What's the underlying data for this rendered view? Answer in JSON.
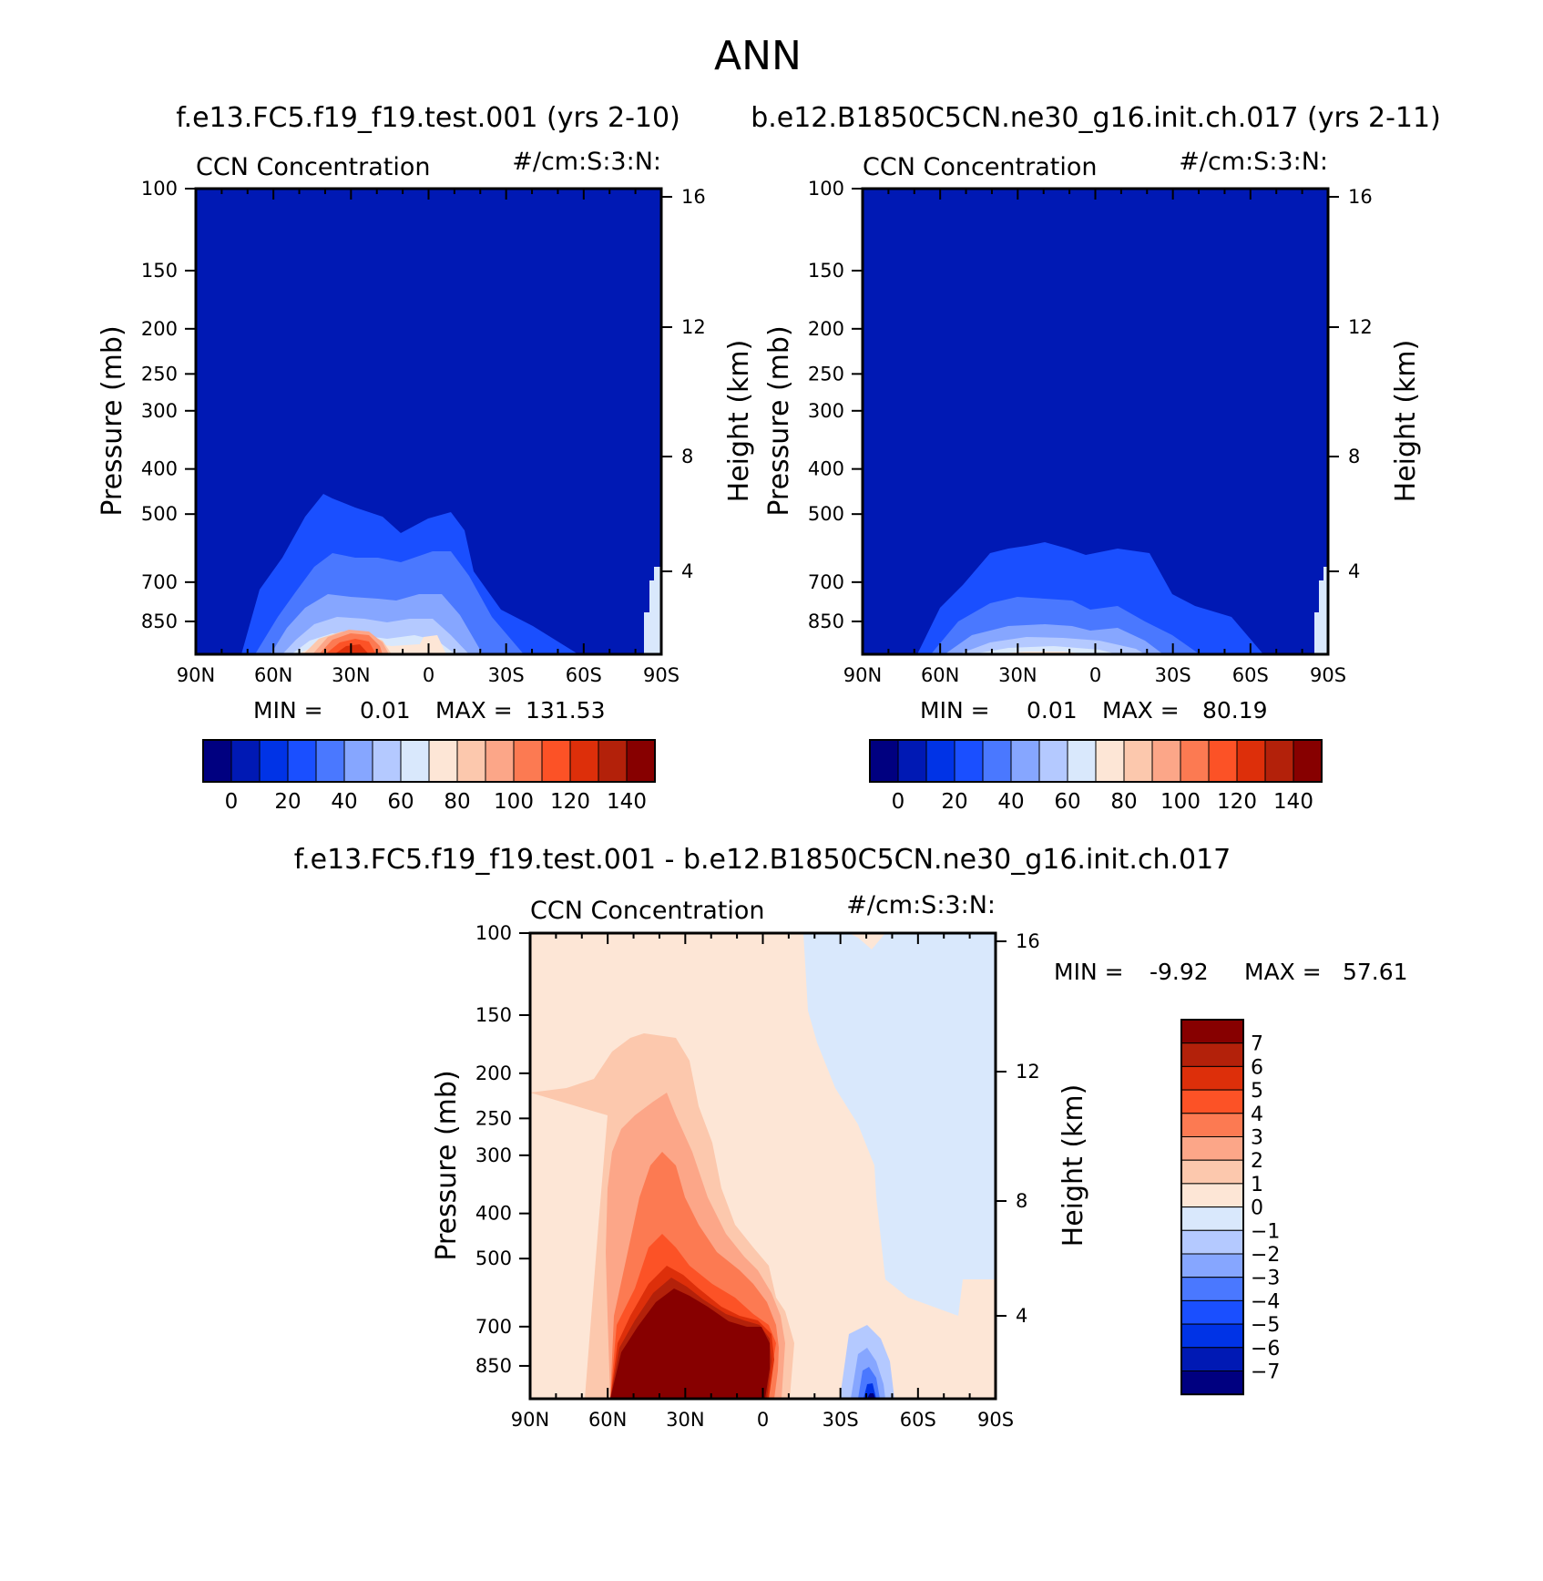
{
  "figure": {
    "title": "ANN"
  },
  "chart_data": [
    {
      "type": "heatmap",
      "title": "f.e13.FC5.f19_f19.test.001 (yrs 2-10)",
      "left_label": "CCN Concentration",
      "right_label": "#/cm:S:3:N:",
      "x_ticks": [
        "90N",
        "60N",
        "30N",
        "0",
        "30S",
        "60S",
        "90S"
      ],
      "xlim": [
        90,
        -90
      ],
      "y_label": "Pressure (mb)",
      "y_ticks": [
        100,
        150,
        200,
        250,
        300,
        400,
        500,
        700,
        850
      ],
      "ylim": [
        100,
        1000
      ],
      "y_scale": "log",
      "y2_label": "Height (km)",
      "y2_ticks": [
        4,
        8,
        12,
        16
      ],
      "min_label": "MIN =",
      "min_value": "0.01",
      "max_label": "MAX =",
      "max_value": "131.53",
      "colorbar_labels": [
        "0",
        "20",
        "40",
        "60",
        "80",
        "100",
        "120",
        "140"
      ],
      "colorbar_orientation": "horizontal",
      "max_location": [
        -22,
        930
      ]
    },
    {
      "type": "heatmap",
      "title": "b.e12.B1850C5CN.ne30_g16.init.ch.017 (yrs 2-11)",
      "left_label": "CCN Concentration",
      "right_label": "#/cm:S:3:N:",
      "x_ticks": [
        "90N",
        "60N",
        "30N",
        "0",
        "30S",
        "60S",
        "90S"
      ],
      "xlim": [
        90,
        -90
      ],
      "y_label": "Pressure (mb)",
      "y_ticks": [
        100,
        150,
        200,
        250,
        300,
        400,
        500,
        700,
        850
      ],
      "ylim": [
        100,
        1000
      ],
      "y_scale": "log",
      "y2_label": "Height (km)",
      "y2_ticks": [
        4,
        8,
        12,
        16
      ],
      "min_label": "MIN =",
      "min_value": "0.01",
      "max_label": "MAX =",
      "max_value": "80.19",
      "colorbar_labels": [
        "0",
        "20",
        "40",
        "60",
        "80",
        "100",
        "120",
        "140"
      ],
      "colorbar_orientation": "horizontal",
      "max_location": [
        -18,
        930
      ]
    },
    {
      "type": "heatmap",
      "title": "f.e13.FC5.f19_f19.test.001 - b.e12.B1850C5CN.ne30_g16.init.ch.017",
      "left_label": "CCN Concentration",
      "right_label": "#/cm:S:3:N:",
      "x_ticks": [
        "90N",
        "60N",
        "30N",
        "0",
        "30S",
        "60S",
        "90S"
      ],
      "xlim": [
        90,
        -90
      ],
      "y_label": "Pressure (mb)",
      "y_ticks": [
        100,
        150,
        200,
        250,
        300,
        400,
        500,
        700,
        850
      ],
      "ylim": [
        100,
        1000
      ],
      "y_scale": "log",
      "y2_label": "Height (km)",
      "y2_ticks": [
        4,
        8,
        12,
        16
      ],
      "min_label": "MIN =",
      "min_value": "-9.92",
      "max_label": "MAX =",
      "max_value": "57.61",
      "colorbar_labels": [
        "7",
        "6",
        "5",
        "4",
        "3",
        "2",
        "1",
        "0",
        "-1",
        "-2",
        "-3",
        "-4",
        "-5",
        "-6",
        "-7"
      ],
      "colorbar_orientation": "vertical"
    }
  ],
  "colors": {
    "levels16": [
      "#000080",
      "#0019b4",
      "#0033e6",
      "#1a4fff",
      "#4a78ff",
      "#86a6ff",
      "#b4c9ff",
      "#d9e8fc",
      "#fde6d6",
      "#fcc8ad",
      "#fca688",
      "#fc7a52",
      "#fc5226",
      "#dd2f0a",
      "#b3210a",
      "#870000"
    ]
  }
}
